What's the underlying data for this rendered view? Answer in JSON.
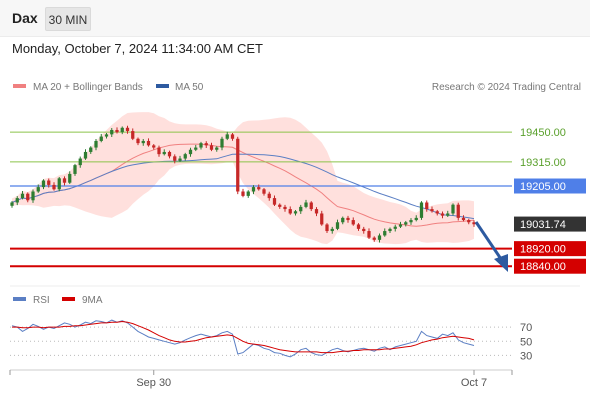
{
  "header": {
    "instrument": "Dax",
    "timeframe": "30 MIN",
    "timestamp": "Monday, October 7, 2024 11:34:00 AM CET"
  },
  "legend": {
    "bollinger": "MA 20 + Bollinger Bands",
    "ma50": "MA 50",
    "credit": "Research © 2024 Trading Central"
  },
  "rsi_legend": {
    "rsi": "RSI",
    "ma9": "9MA"
  },
  "colors": {
    "accent_blue": "#2d5aa0",
    "level_green": "#8bc34a",
    "level_blue": "#4f7fe8",
    "level_red": "#d40000",
    "band_fill": "#ffd6d2",
    "ma20": "#f08080",
    "candle_up": "#2e7d32",
    "candle_down": "#c62828"
  },
  "chart_data": [
    {
      "type": "candlestick",
      "price_axis": {
        "min": 18800,
        "max": 19560
      },
      "levels": [
        {
          "value": "19450.00",
          "style": "resistance"
        },
        {
          "value": "19315.00",
          "style": "resistance"
        },
        {
          "value": "19205.00",
          "style": "pivot"
        },
        {
          "value": "19031.74",
          "style": "last"
        },
        {
          "value": "18920.00",
          "style": "support"
        },
        {
          "value": "18840.00",
          "style": "support"
        }
      ],
      "x_tick_labels": [
        "Sep 30",
        "Oct 7"
      ],
      "close": [
        19130,
        19150,
        19170,
        19140,
        19180,
        19200,
        19230,
        19210,
        19190,
        19240,
        19220,
        19260,
        19300,
        19330,
        19360,
        19380,
        19410,
        19430,
        19440,
        19460,
        19450,
        19470,
        19455,
        19420,
        19400,
        19410,
        19390,
        19380,
        19350,
        19360,
        19340,
        19320,
        19330,
        19350,
        19370,
        19380,
        19400,
        19390,
        19370,
        19380,
        19420,
        19440,
        19420,
        19180,
        19160,
        19180,
        19200,
        19190,
        19170,
        19150,
        19120,
        19110,
        19100,
        19080,
        19090,
        19110,
        19130,
        19100,
        19080,
        19030,
        19000,
        19010,
        19040,
        19060,
        19050,
        19030,
        19010,
        19000,
        18970,
        18960,
        18980,
        19000,
        19010,
        19020,
        19030,
        19040,
        19050,
        19060,
        19130,
        19100,
        19090,
        19080,
        19070,
        19080,
        19120,
        19060,
        19050,
        19040,
        19031
      ]
    },
    {
      "type": "line",
      "title": "RSI",
      "y_axis_ticks": [
        70,
        50,
        30
      ],
      "ylim": [
        15,
        90
      ],
      "series": [
        {
          "name": "RSI",
          "values": [
            72,
            70,
            64,
            68,
            74,
            71,
            67,
            70,
            68,
            72,
            76,
            74,
            70,
            73,
            77,
            75,
            79,
            78,
            76,
            80,
            77,
            79,
            76,
            70,
            64,
            60,
            56,
            54,
            52,
            50,
            48,
            46,
            48,
            52,
            55,
            58,
            60,
            58,
            56,
            58,
            62,
            64,
            60,
            32,
            34,
            40,
            46,
            44,
            40,
            38,
            34,
            33,
            30,
            28,
            32,
            38,
            40,
            34,
            31,
            30,
            34,
            38,
            40,
            37,
            35,
            37,
            39,
            40,
            38,
            36,
            40,
            42,
            38,
            42,
            44,
            46,
            48,
            50,
            64,
            58,
            56,
            54,
            60,
            58,
            62,
            52,
            48,
            46,
            44
          ]
        },
        {
          "name": "9MA",
          "values": [
            70,
            70,
            69,
            69,
            70,
            70,
            69,
            70,
            70,
            70,
            71,
            71,
            72,
            72,
            73,
            74,
            75,
            76,
            76,
            77,
            77,
            78,
            77,
            75,
            72,
            69,
            66,
            62,
            58,
            55,
            52,
            50,
            49,
            49,
            50,
            51,
            53,
            55,
            56,
            57,
            58,
            59,
            58,
            54,
            50,
            47,
            46,
            45,
            44,
            42,
            40,
            38,
            37,
            36,
            35,
            35,
            35,
            35,
            35,
            34,
            34,
            34,
            35,
            36,
            36,
            37,
            37,
            38,
            38,
            38,
            38,
            39,
            39,
            40,
            41,
            42,
            43,
            45,
            48,
            50,
            52,
            53,
            55,
            56,
            57,
            56,
            55,
            54,
            52
          ]
        }
      ]
    }
  ]
}
